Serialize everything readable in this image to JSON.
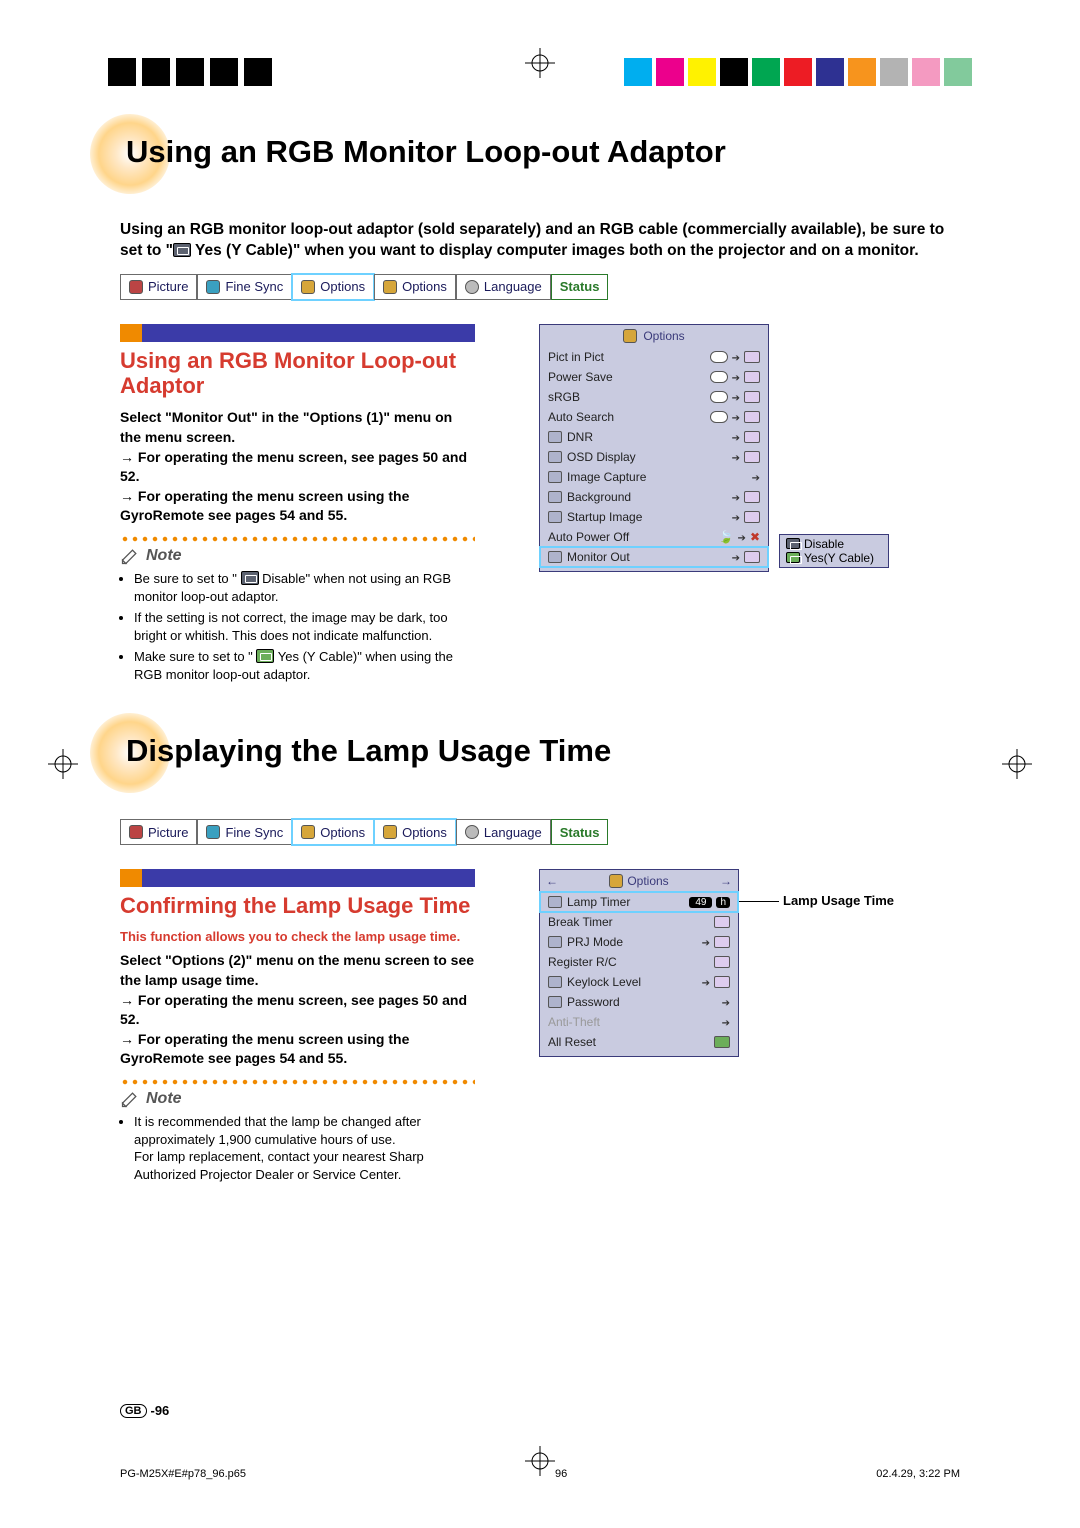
{
  "print_marks": {
    "color_swatches": [
      "#00aeef",
      "#ec008c",
      "#fff200",
      "#000000",
      "#00a651",
      "#ed1c24",
      "#2e3192",
      "#f7941d",
      "#b3b3b3",
      "#f49ac1",
      "#82ca9c",
      "#fff"
    ],
    "black_bar_count": 5
  },
  "section1": {
    "title": "Using an RGB Monitor Loop-out Adaptor",
    "intro_before_icon": "Using an RGB monitor loop-out adaptor (sold separately) and an RGB cable (commercially available), be sure to set to \"",
    "intro_after_icon": " Yes (Y Cable)\" when you want to display computer images both on the projector and on a monitor.",
    "menubar": [
      {
        "label": "Picture",
        "icon": "ico-pic"
      },
      {
        "label": "Fine Sync",
        "icon": "ico-sync"
      },
      {
        "label": "Options",
        "icon": "ico-opt",
        "selected": true
      },
      {
        "label": "Options",
        "icon": "ico-opt"
      },
      {
        "label": "Language",
        "icon": "ico-lang"
      },
      {
        "label": "Status",
        "status": true
      }
    ],
    "subhead": "Using an RGB Monitor Loop-out Adaptor",
    "instr1": "Select \"Monitor Out\" in the \"Options (1)\" menu on the menu screen.",
    "instr2": "→ For operating the menu screen, see pages 50 and 52.",
    "instr3": "→ For operating the menu screen using the GyroRemote see pages 54 and 55.",
    "note_label": "Note",
    "notes": [
      "Be sure to set to \" Disable\" when not using an RGB monitor loop-out adaptor.",
      "If the setting is not correct, the image may be dark, too bright or whitish. This does not indicate malfunction.",
      "Make sure to set to \" Yes (Y Cable)\" when using the RGB monitor loop-out adaptor."
    ],
    "osd": {
      "title": "Options",
      "rows": [
        {
          "label": "Pict in Pict",
          "val_pill": true,
          "arrow": true,
          "toggle": true
        },
        {
          "label": "Power Save",
          "val_pill": true,
          "arrow": true,
          "toggle": true
        },
        {
          "label": "sRGB",
          "val_pill": true,
          "arrow": true,
          "toggle": true
        },
        {
          "label": "Auto Search",
          "val_pill": true,
          "arrow": true,
          "toggle": true
        },
        {
          "label": "DNR",
          "icon": true,
          "arrow": true,
          "toggle": true
        },
        {
          "label": "OSD Display",
          "icon": true,
          "arrow": true,
          "toggle": true
        },
        {
          "label": "Image Capture",
          "icon": true,
          "arrow": true
        },
        {
          "label": "Background",
          "icon": true,
          "arrow": true,
          "toggle": true
        },
        {
          "label": "Startup Image",
          "icon": true,
          "arrow": true,
          "toggle": true
        },
        {
          "label": "Auto Power Off",
          "leaf": true,
          "arrow": true,
          "red": true
        },
        {
          "label": "Monitor Out",
          "icon": true,
          "arrow": true,
          "toggle": true,
          "hl": true
        }
      ],
      "popout": [
        "Disable",
        "Yes(Y Cable)"
      ]
    }
  },
  "section2": {
    "title": "Displaying the Lamp Usage Time",
    "menubar_selected_index": 3,
    "subhead": "Confirming the Lamp Usage Time",
    "func_desc": "This function allows you to check the lamp usage time.",
    "instr1": "Select \"Options (2)\" menu on the menu screen to see the lamp usage time.",
    "instr2": "→ For operating the menu screen, see pages 50 and 52.",
    "instr3": "→ For operating the menu screen using the GyroRemote see pages 54 and 55.",
    "note_label": "Note",
    "notes": [
      "It is recommended that the lamp be changed after approximately 1,900 cumulative hours of use.\nFor lamp replacement, contact your nearest Sharp Authorized Projector Dealer or Service Center."
    ],
    "osd": {
      "title": "Options",
      "rows": [
        {
          "label": "Lamp Timer",
          "value": "49",
          "unit": "h",
          "hl": true,
          "icon": true
        },
        {
          "label": "Break Timer",
          "toggle": true
        },
        {
          "label": "PRJ Mode",
          "icon": true,
          "arrow": true,
          "toggle": true
        },
        {
          "label": "Register R/C",
          "toggle": true
        },
        {
          "label": "Keylock Level",
          "icon": true,
          "arrow": true,
          "toggle": true
        },
        {
          "label": "Password",
          "icon": true,
          "arrow": true
        },
        {
          "label": "Anti-Theft",
          "dim": true,
          "arrow": true
        },
        {
          "label": "All Reset",
          "toggle": true,
          "green": true
        }
      ],
      "callout": "Lamp Usage Time"
    }
  },
  "page_number_prefix": "GB",
  "page_number": "-96",
  "print_footer": {
    "file": "PG-M25X#E#p78_96.p65",
    "page": "96",
    "timestamp": "02.4.29, 3:22 PM"
  },
  "colors": {
    "subhead": "#d63b2f",
    "bar_orange": "#f08a00",
    "bar_blue": "#3b3ba8",
    "osd_bg": "#c9cbe0",
    "osd_border": "#3a3a7a",
    "highlight": "#6ed1ff"
  }
}
